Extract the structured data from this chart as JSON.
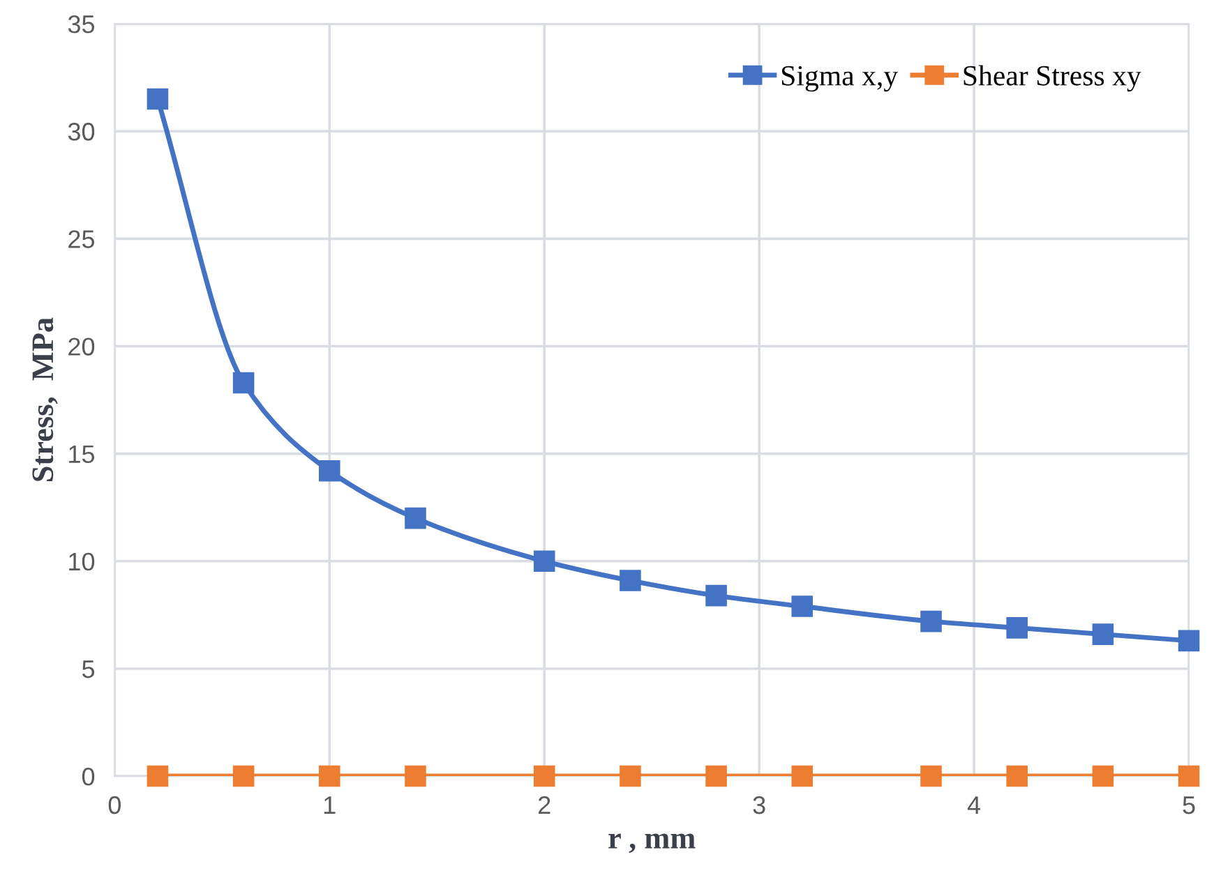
{
  "chart_data": {
    "type": "line",
    "xlabel": "r , mm",
    "ylabel": "Stress,  MPa",
    "x": [
      0.2,
      0.6,
      1,
      1.4,
      2,
      2.4,
      2.8,
      3.2,
      3.8,
      4.2,
      4.6,
      5
    ],
    "series": [
      {
        "name": "Sigma x,y",
        "color": "#4472c4",
        "values": [
          31.5,
          18.3,
          14.2,
          12.0,
          10.0,
          9.1,
          8.4,
          7.9,
          7.2,
          6.9,
          6.6,
          6.3
        ]
      },
      {
        "name": "Shear Stress xy",
        "color": "#ed7d31",
        "values": [
          0,
          0,
          0,
          0,
          0,
          0,
          0,
          0,
          0,
          0,
          0,
          0
        ]
      }
    ],
    "xlim": [
      0,
      5
    ],
    "xticks": [
      0,
      1,
      2,
      3,
      4,
      5
    ],
    "ylim": [
      0,
      35
    ],
    "yticks": [
      0,
      5,
      10,
      15,
      20,
      25,
      30,
      35
    ],
    "grid": true,
    "legend": "top right",
    "marker": "square",
    "line_style": "solid"
  }
}
